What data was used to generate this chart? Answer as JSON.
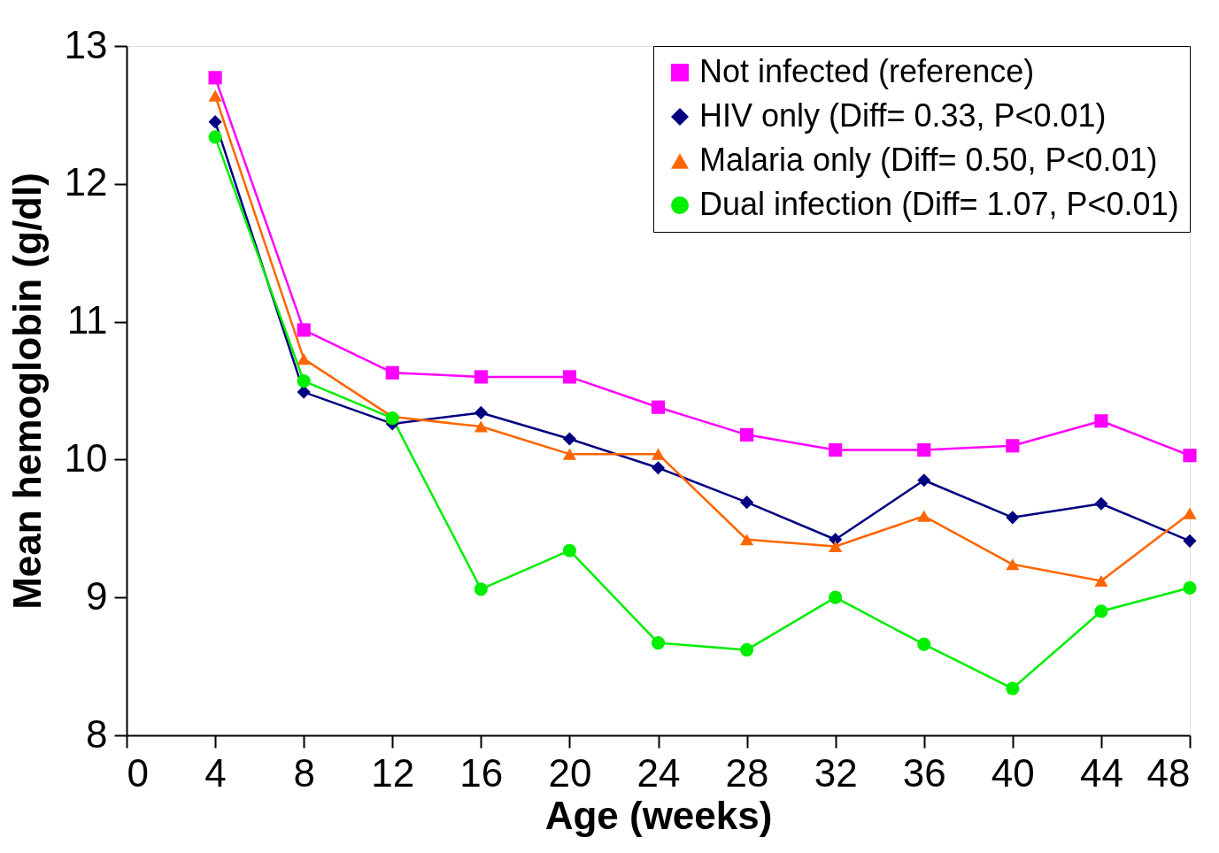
{
  "chart_data": {
    "type": "line",
    "xlabel": "Age (weeks)",
    "ylabel": "Mean hemoglobin (g/dl)",
    "xlim": [
      0,
      48
    ],
    "xticks": [
      0,
      4,
      8,
      12,
      16,
      20,
      24,
      28,
      32,
      36,
      40,
      44,
      48
    ],
    "ylim": [
      8,
      13
    ],
    "yticks": [
      8,
      9,
      10,
      11,
      12,
      13
    ],
    "grid": false,
    "legend": "top right",
    "line_style": "solid",
    "x": [
      4,
      8,
      12,
      16,
      20,
      24,
      28,
      32,
      36,
      40,
      44,
      48
    ],
    "series": [
      {
        "name": "Not infected (reference)",
        "color": "#ff00ff",
        "marker": "square",
        "values": [
          12.77,
          10.94,
          10.63,
          10.6,
          10.6,
          10.38,
          10.18,
          10.07,
          10.07,
          10.1,
          10.28,
          10.03
        ]
      },
      {
        "name": "HIV only (Diff= 0.33, P<0.01)",
        "color": "#000080",
        "marker": "diamond",
        "values": [
          12.45,
          10.49,
          10.26,
          10.34,
          10.15,
          9.94,
          9.69,
          9.42,
          9.85,
          9.58,
          9.68,
          9.41
        ]
      },
      {
        "name": "Malaria only (Diff= 0.50, P<0.01)",
        "color": "#ff6600",
        "marker": "triangle",
        "values": [
          12.64,
          10.73,
          10.31,
          10.24,
          10.04,
          10.04,
          9.42,
          9.37,
          9.59,
          9.24,
          9.12,
          9.61
        ]
      },
      {
        "name": "Dual infection (Diff= 1.07, P<0.01)",
        "color": "#00ee00",
        "marker": "circle",
        "values": [
          12.34,
          10.57,
          10.3,
          9.06,
          9.34,
          8.67,
          8.62,
          9.0,
          8.66,
          8.34,
          8.9,
          9.07
        ]
      }
    ]
  }
}
